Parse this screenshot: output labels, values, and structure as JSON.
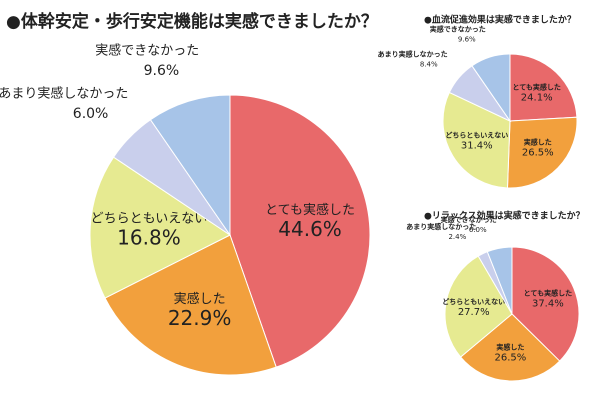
{
  "chart_data": [
    {
      "type": "pie",
      "title": "●体幹安定・歩行安定機能は実感できましたか？",
      "categories": [
        "とても実感した",
        "実感した",
        "どちらともいえない",
        "あまり実感しなかった",
        "実感できなかった"
      ],
      "values": [
        44.6,
        22.9,
        16.8,
        6.0,
        9.6
      ],
      "value_labels": [
        "44.6%",
        "22.9%",
        "16.8%",
        "6.0%",
        "9.6%"
      ],
      "colors": [
        "#e8696a",
        "#f2a03d",
        "#e6ea91",
        "#c9cfec",
        "#a7c4e8"
      ]
    },
    {
      "type": "pie",
      "title": "●血流促進効果は実感できましたか？",
      "categories": [
        "とても実感した",
        "実感した",
        "どちらともいえない",
        "あまり実感しなかった",
        "実感できなかった"
      ],
      "values": [
        24.1,
        26.5,
        31.4,
        8.4,
        9.6
      ],
      "value_labels": [
        "24.1%",
        "26.5%",
        "31.4%",
        "8.4%",
        "9.6%"
      ],
      "colors": [
        "#e8696a",
        "#f2a03d",
        "#e6ea91",
        "#c9cfec",
        "#a7c4e8"
      ]
    },
    {
      "type": "pie",
      "title": "●リラックス効果は実感できましたか？",
      "categories": [
        "とても実感した",
        "実感した",
        "どちらともいえない",
        "あまり実感しなかった",
        "実感できなかった"
      ],
      "values": [
        37.4,
        26.5,
        27.7,
        2.4,
        6.0
      ],
      "value_labels": [
        "37.4%",
        "26.5%",
        "27.7%",
        "2.4%",
        "6.0%"
      ],
      "colors": [
        "#e8696a",
        "#f2a03d",
        "#e6ea91",
        "#c9cfec",
        "#a7c4e8"
      ]
    }
  ]
}
